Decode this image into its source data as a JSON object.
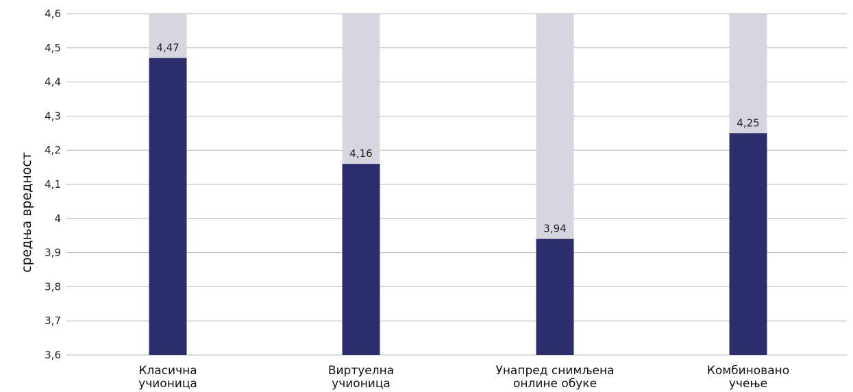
{
  "chart_data": {
    "type": "bar",
    "title": "",
    "xlabel": "",
    "ylabel": "средња вредност",
    "ylim": [
      3.6,
      4.6
    ],
    "yticks": [
      3.6,
      3.7,
      3.8,
      3.9,
      4.0,
      4.1,
      4.2,
      4.3,
      4.4,
      4.5,
      4.6
    ],
    "ytick_labels": [
      "3,6",
      "3,7",
      "3,8",
      "3,9",
      "4",
      "4,1",
      "4,2",
      "4,3",
      "4,4",
      "4,5",
      "4,6"
    ],
    "grid": true,
    "categories": [
      [
        "Класична",
        "учионица"
      ],
      [
        "Виртуелна",
        "учионица"
      ],
      [
        "Унапред снимљена",
        "онлине обуке"
      ],
      [
        "Комбиновано",
        "учење"
      ]
    ],
    "values": [
      4.47,
      4.16,
      3.94,
      4.25
    ],
    "value_labels": [
      "4,47",
      "4,16",
      "3,94",
      "4,25"
    ],
    "colors": {
      "bar": "#2b2e6b",
      "bar_background": "#d6d6e0",
      "grid": "#b9b9b9"
    }
  }
}
